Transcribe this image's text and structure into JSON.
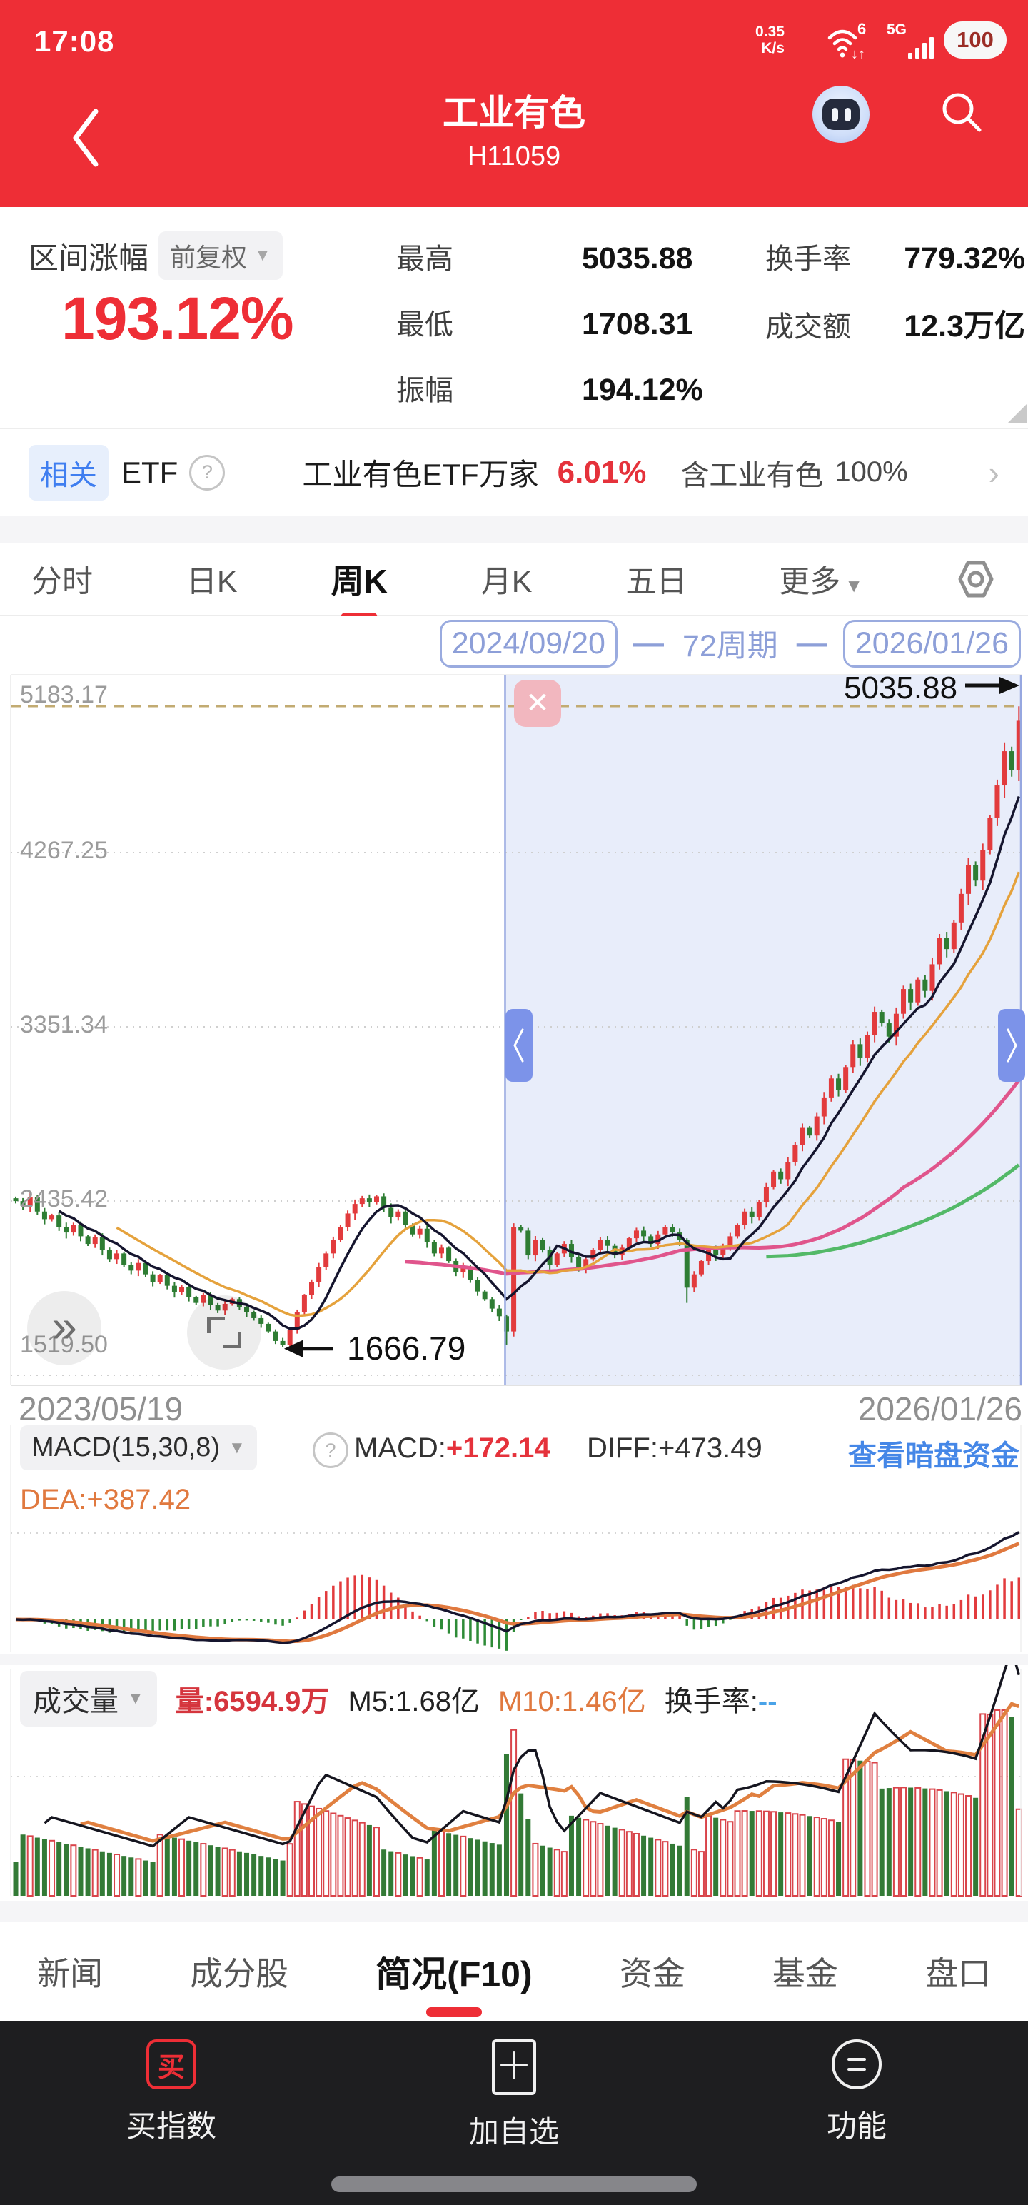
{
  "status_bar": {
    "time": "17:08",
    "speed": "0.35",
    "speed_unit": "K/s",
    "wifi_badge": "6",
    "network": "5G",
    "battery": "100"
  },
  "header": {
    "title": "工业有色",
    "code": "H11059"
  },
  "stats": {
    "range_label": "区间涨幅",
    "adjust": "前复权",
    "change": "193.12%",
    "col1": [
      {
        "label": "最高",
        "value": "5035.88"
      },
      {
        "label": "最低",
        "value": "1708.31"
      },
      {
        "label": "振幅",
        "value": "194.12%"
      }
    ],
    "col2": [
      {
        "label": "换手率",
        "value": "779.32%"
      },
      {
        "label": "成交额",
        "value": "12.3万亿"
      }
    ]
  },
  "etf": {
    "tag": "相关",
    "category": "ETF",
    "help": "?",
    "name": "工业有色ETF万家",
    "change": "6.01%",
    "holding_label": "含工业有色",
    "holding_value": "100%",
    "chevron": "›"
  },
  "period_tabs": {
    "items": [
      "分时",
      "日K",
      "周K",
      "月K",
      "五日"
    ],
    "active_index": 2,
    "more": "更多"
  },
  "range_selector": {
    "start": "2024/09/20",
    "periods": "72周期",
    "end": "2026/01/26",
    "dash": "—"
  },
  "macd": {
    "indicator": "MACD(15,30,8)",
    "help": "?",
    "macd_label": "MACD:",
    "macd_value": "+172.14",
    "diff": "DIFF:+473.49",
    "dea": "DEA:+387.42",
    "link": "查看暗盘资金"
  },
  "volume": {
    "name": "成交量",
    "current": "量:6594.9万",
    "m5": "M5:1.68亿",
    "m10": "M10:1.46亿",
    "turnover_label": "换手率:",
    "turnover_value": "--"
  },
  "bottom_tabs": {
    "items": [
      "新闻",
      "成分股",
      "简况(F10)",
      "资金",
      "基金",
      "盘口"
    ],
    "active_index": 2
  },
  "bottom_bar": {
    "items": [
      {
        "label": "买指数",
        "icon_char": "买"
      },
      {
        "label": "加自选",
        "icon_char": "＋"
      },
      {
        "label": "功能"
      }
    ]
  },
  "chart_data": {
    "type": "candlestick",
    "timeframe": "weekly",
    "x_start": "2023/05/19",
    "x_end": "2026/01/26",
    "y_ticks": [
      "5183.17",
      "4267.25",
      "3351.34",
      "2435.42",
      "1519.50"
    ],
    "y_range": [
      1519.5,
      5183.17
    ],
    "annotations": {
      "high": {
        "label": "5035.88",
        "price": 5035.88,
        "index": 139
      },
      "low": {
        "label": "1666.79",
        "price": 1666.79,
        "index": 37
      }
    },
    "selection": {
      "start": "2024/09/20",
      "end": "2026/01/26",
      "periods": 72,
      "start_index": 68
    },
    "closes": [
      2435,
      2410,
      2455,
      2380,
      2340,
      2360,
      2300,
      2270,
      2310,
      2250,
      2210,
      2245,
      2180,
      2130,
      2160,
      2100,
      2070,
      2110,
      2050,
      2010,
      2045,
      1990,
      1955,
      1985,
      1930,
      1900,
      1940,
      1890,
      1860,
      1895,
      1920,
      1880,
      1850,
      1820,
      1790,
      1750,
      1700,
      1680,
      1760,
      1850,
      1940,
      2010,
      2090,
      2160,
      2230,
      2300,
      2370,
      2420,
      2450,
      2430,
      2460,
      2400,
      2350,
      2380,
      2310,
      2260,
      2290,
      2220,
      2160,
      2190,
      2120,
      2060,
      2090,
      2020,
      1960,
      1920,
      1870,
      1830,
      1750,
      2300,
      2280,
      2150,
      2230,
      2180,
      2100,
      2160,
      2210,
      2140,
      2080,
      2130,
      2180,
      2230,
      2200,
      2150,
      2190,
      2240,
      2280,
      2250,
      2210,
      2260,
      2300,
      2270,
      2230,
      1980,
      2050,
      2120,
      2180,
      2150,
      2200,
      2250,
      2310,
      2380,
      2350,
      2430,
      2510,
      2590,
      2550,
      2640,
      2730,
      2820,
      2780,
      2880,
      2980,
      3080,
      3020,
      3140,
      3260,
      3190,
      3310,
      3430,
      3370,
      3300,
      3420,
      3550,
      3480,
      3600,
      3540,
      3680,
      3820,
      3760,
      3900,
      4050,
      4200,
      4120,
      4280,
      4450,
      4620,
      4800,
      4700,
      4960
    ],
    "colors": {
      "up": "#e23b3d",
      "down": "#2e7d33",
      "ma_short": "#15152e",
      "ma_mid": "#e5a23c",
      "ma_long": "#e0558c",
      "ma_xlong": "#53b968"
    },
    "macd_pane": {
      "diff_end": 473.49,
      "dea_end": 387.42,
      "macd_end": 172.14
    },
    "volume_pane": {
      "last": "6594.9万",
      "m5": "1.68亿",
      "m10": "1.46亿"
    }
  }
}
